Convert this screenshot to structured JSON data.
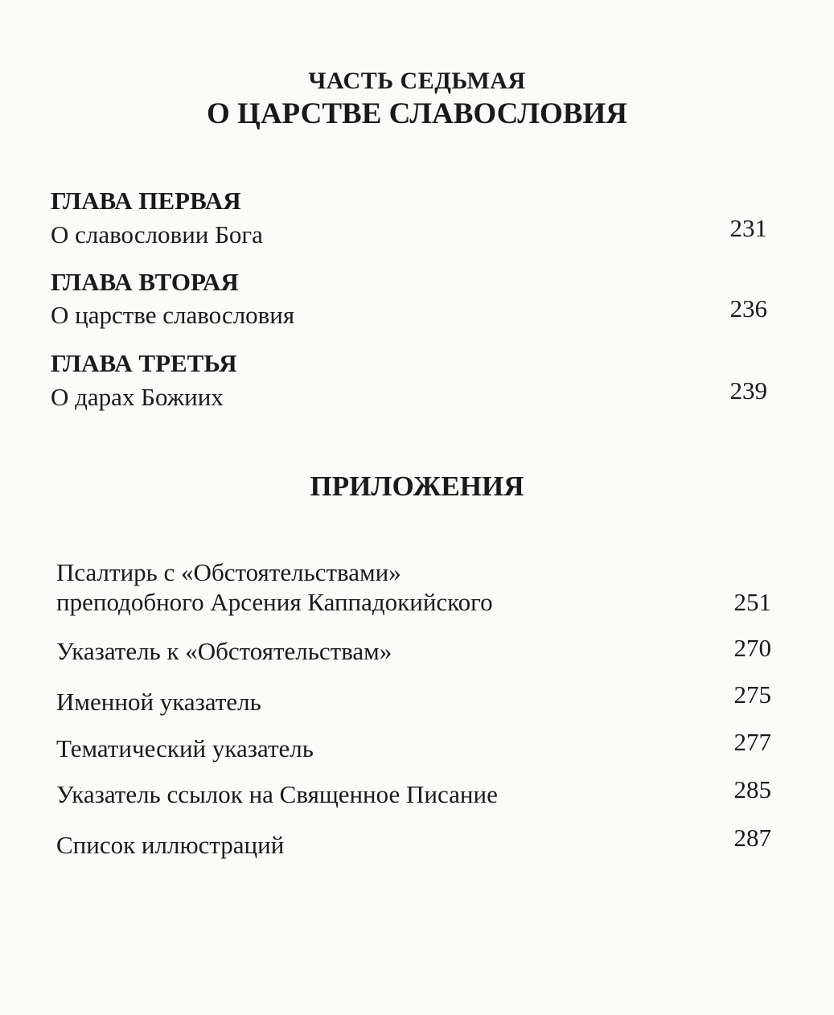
{
  "part": {
    "label": "ЧАСТЬ СЕДЬМАЯ",
    "title": "О ЦАРСТВЕ СЛАВОСЛОВИЯ"
  },
  "chapters": [
    {
      "heading": "ГЛАВА ПЕРВАЯ",
      "title": "О славословии Бога",
      "page": "231"
    },
    {
      "heading": "ГЛАВА ВТОРАЯ",
      "title": "О царстве славословия",
      "page": "236"
    },
    {
      "heading": "ГЛАВА ТРЕТЬЯ",
      "title": "О дарах Божиих",
      "page": "239"
    }
  ],
  "appendix": {
    "title": "ПРИЛОЖЕНИЯ",
    "items": [
      {
        "line1": "Псалтирь с «Обстоятельствами»",
        "line2": "преподобного Арсения Каппадокийского",
        "page": "251"
      },
      {
        "line1": "Указатель к «Обстоятельствам»",
        "page": "270"
      },
      {
        "line1": "Именной указатель",
        "page": "275"
      },
      {
        "line1": "Тематический указатель",
        "page": "277"
      },
      {
        "line1": "Указатель ссылок на Священное Писание",
        "page": "285"
      },
      {
        "line1": "Список иллюстраций",
        "page": "287"
      }
    ]
  }
}
